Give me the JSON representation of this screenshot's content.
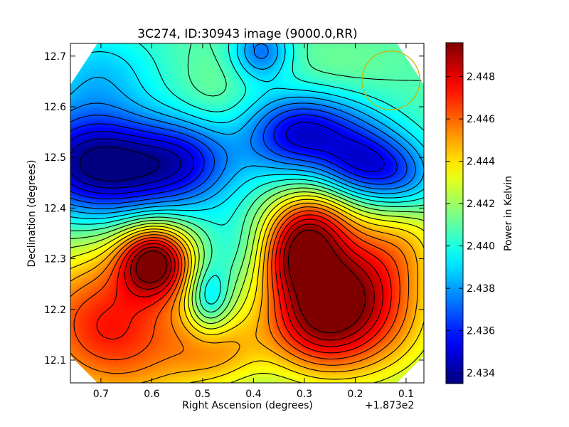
{
  "chart_data": {
    "type": "heatmap",
    "title": "3C274, ID:30943 image (9000.0,RR)",
    "xlabel": "Right Ascension (degrees)",
    "ylabel": "Declination (degrees)",
    "x_offset_label": "+1.873e2",
    "x_axis_reversed": true,
    "xlim": [
      0.76,
      0.065
    ],
    "ylim": [
      12.055,
      12.725
    ],
    "x_ticks": [
      0.7,
      0.6,
      0.5,
      0.4,
      0.3,
      0.2,
      0.1
    ],
    "x_tick_labels": [
      "0.7",
      "0.6",
      "0.5",
      "0.4",
      "0.3",
      "0.2",
      "0.1"
    ],
    "y_ticks": [
      12.1,
      12.2,
      12.3,
      12.4,
      12.5,
      12.6,
      12.7
    ],
    "y_tick_labels": [
      "12.1",
      "12.2",
      "12.3",
      "12.4",
      "12.5",
      "12.6",
      "12.7"
    ],
    "colorbar": {
      "label": "Power in Kelvin",
      "range": [
        2.4335,
        2.4496
      ],
      "ticks": [
        2.434,
        2.436,
        2.438,
        2.44,
        2.442,
        2.444,
        2.446,
        2.448
      ],
      "tick_labels": [
        "2.434",
        "2.436",
        "2.438",
        "2.440",
        "2.442",
        "2.444",
        "2.446",
        "2.448"
      ],
      "colormap": "jet"
    },
    "contours": {
      "color": "#000000",
      "spacing_kelvin": 0.0008
    },
    "beam_circle": {
      "center_ra": 0.13,
      "center_dec": 12.652,
      "radius_ra": 0.057,
      "radius_dec": 0.058,
      "color": "#c8b400"
    },
    "field": {
      "base": 2.4408,
      "lobes": [
        {
          "ra": 0.594,
          "dec": 12.298,
          "amp": 0.0078,
          "sra": 0.05,
          "sdec": 0.05
        },
        {
          "ra": 0.7,
          "dec": 12.2,
          "amp": 0.0045,
          "sra": 0.12,
          "sdec": 0.1
        },
        {
          "ra": 0.64,
          "dec": 12.1,
          "amp": 0.003,
          "sra": 0.14,
          "sdec": 0.1
        },
        {
          "ra": 0.28,
          "dec": 12.185,
          "amp": 0.0062,
          "sra": 0.08,
          "sdec": 0.08
        },
        {
          "ra": 0.318,
          "dec": 12.3,
          "amp": 0.004,
          "sra": 0.05,
          "sdec": 0.05
        },
        {
          "ra": 0.29,
          "dec": 12.37,
          "amp": 0.005,
          "sra": 0.06,
          "sdec": 0.05
        },
        {
          "ra": 0.16,
          "dec": 12.19,
          "amp": 0.0045,
          "sra": 0.1,
          "sdec": 0.1
        },
        {
          "ra": 0.22,
          "dec": 12.28,
          "amp": 0.003,
          "sra": 0.08,
          "sdec": 0.07
        },
        {
          "ra": 0.1,
          "dec": 12.34,
          "amp": 0.002,
          "sra": 0.06,
          "sdec": 0.06
        },
        {
          "ra": 0.47,
          "dec": 12.12,
          "amp": 0.0025,
          "sra": 0.06,
          "sdec": 0.05
        },
        {
          "ra": 0.655,
          "dec": 12.478,
          "amp": -0.0068,
          "sra": 0.13,
          "sdec": 0.07
        },
        {
          "ra": 0.74,
          "dec": 12.52,
          "amp": -0.002,
          "sra": 0.08,
          "sdec": 0.08
        },
        {
          "ra": 0.32,
          "dec": 12.545,
          "amp": -0.0045,
          "sra": 0.07,
          "sdec": 0.055
        },
        {
          "ra": 0.183,
          "dec": 12.485,
          "amp": -0.0048,
          "sra": 0.06,
          "sdec": 0.05
        },
        {
          "ra": 0.1,
          "dec": 12.46,
          "amp": -0.0025,
          "sra": 0.05,
          "sdec": 0.05
        },
        {
          "ra": 0.24,
          "dec": 12.56,
          "amp": -0.002,
          "sra": 0.08,
          "sdec": 0.05
        },
        {
          "ra": 0.53,
          "dec": 12.5,
          "amp": -0.0018,
          "sra": 0.06,
          "sdec": 0.05
        },
        {
          "ra": 0.488,
          "dec": 12.22,
          "amp": -0.0035,
          "sra": 0.03,
          "sdec": 0.05
        },
        {
          "ra": 0.44,
          "dec": 12.32,
          "amp": -0.001,
          "sra": 0.04,
          "sdec": 0.05
        },
        {
          "ra": 0.385,
          "dec": 12.71,
          "amp": -0.0035,
          "sra": 0.04,
          "sdec": 0.04
        },
        {
          "ra": 0.7,
          "dec": 12.67,
          "amp": -0.0018,
          "sra": 0.08,
          "sdec": 0.06
        },
        {
          "ra": 0.48,
          "dec": 12.63,
          "amp": 0.0006,
          "sra": 0.05,
          "sdec": 0.06
        },
        {
          "ra": 0.24,
          "dec": 12.68,
          "amp": 0.0005,
          "sra": 0.08,
          "sdec": 0.05
        }
      ]
    }
  }
}
